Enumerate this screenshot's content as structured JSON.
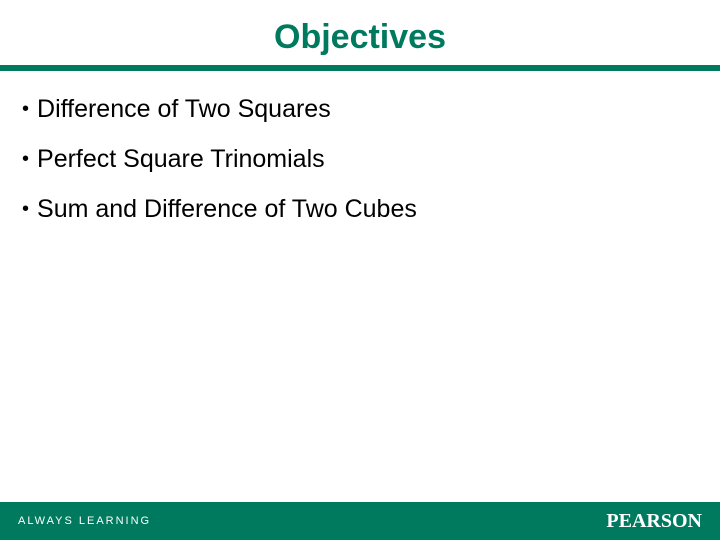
{
  "colors": {
    "brand_green": "#007a5e",
    "title_text": "#007a5e",
    "body_text": "#000000",
    "footer_text": "#ffffff",
    "background": "#ffffff"
  },
  "title": "Objectives",
  "bullets": [
    "Difference of Two Squares",
    "Perfect Square Trinomials",
    "Sum and Difference of Two Cubes"
  ],
  "footer": {
    "left": "ALWAYS LEARNING",
    "right": "PEARSON"
  },
  "typography": {
    "title_fontsize": 34,
    "bullet_fontsize": 25,
    "footer_left_fontsize": 11,
    "footer_right_fontsize": 20
  }
}
